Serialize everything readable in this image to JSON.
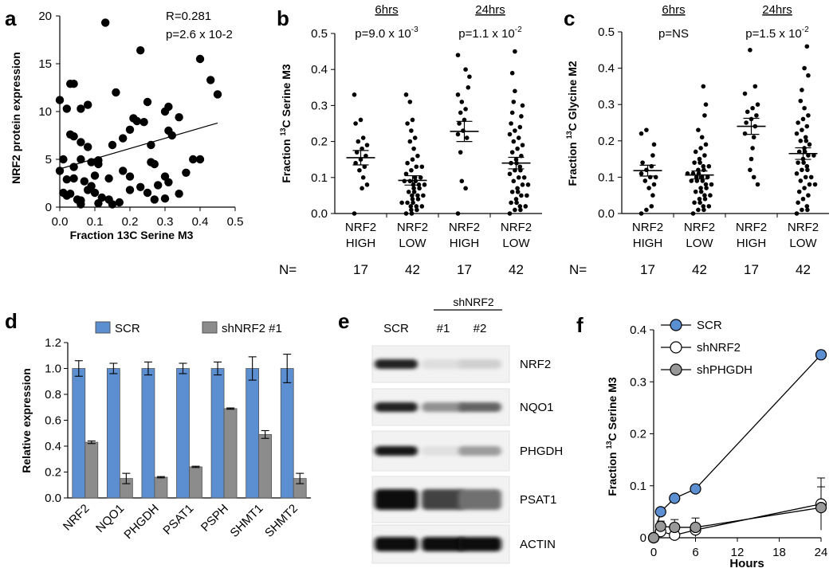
{
  "panel_labels": {
    "a": "a",
    "b": "b",
    "c": "c",
    "d": "d",
    "e": "e",
    "f": "f"
  },
  "chart_data": [
    {
      "id": "a",
      "type": "scatter",
      "title": "",
      "xlabel": "Fraction 13C Serine M3",
      "ylabel": "NRF2 protein expression",
      "xlim": [
        0,
        0.5
      ],
      "ylim": [
        0,
        20
      ],
      "xticks": [
        "0.0",
        "0.1",
        "0.2",
        "0.3",
        "0.4",
        "0.5"
      ],
      "yticks": [
        "0",
        "5",
        "10",
        "15",
        "20"
      ],
      "annotations": [
        "R=0.281",
        "p=2.6 x 10-2"
      ],
      "trendline": {
        "x": [
          0.0,
          0.45
        ],
        "y": [
          4.0,
          8.8
        ]
      },
      "points": [
        [
          0.13,
          19.3
        ],
        [
          0.23,
          16.4
        ],
        [
          0.4,
          15.5
        ],
        [
          0.43,
          13.3
        ],
        [
          0.45,
          11.8
        ],
        [
          0.0,
          11.2
        ],
        [
          0.03,
          12.9
        ],
        [
          0.04,
          12.9
        ],
        [
          0.02,
          10.3
        ],
        [
          0.06,
          10.3
        ],
        [
          0.08,
          10.7
        ],
        [
          0.16,
          12.0
        ],
        [
          0.31,
          10.5
        ],
        [
          0.3,
          10.0
        ],
        [
          0.25,
          11.0
        ],
        [
          0.32,
          7.5
        ],
        [
          0.31,
          8.0
        ],
        [
          0.2,
          8.1
        ],
        [
          0.18,
          7.2
        ],
        [
          0.15,
          6.5
        ],
        [
          0.21,
          9.3
        ],
        [
          0.22,
          9.0
        ],
        [
          0.24,
          8.9
        ],
        [
          0.26,
          6.5
        ],
        [
          0.34,
          9.4
        ],
        [
          0.38,
          5.0
        ],
        [
          0.4,
          5.0
        ],
        [
          0.36,
          3.6
        ],
        [
          0.03,
          7.6
        ],
        [
          0.04,
          7.4
        ],
        [
          0.06,
          6.8
        ],
        [
          0.08,
          6.3
        ],
        [
          0.11,
          4.9
        ],
        [
          0.09,
          4.7
        ],
        [
          0.11,
          4.5
        ],
        [
          0.06,
          5.0
        ],
        [
          0.01,
          5.0
        ],
        [
          0.0,
          3.8
        ],
        [
          0.02,
          2.9
        ],
        [
          0.04,
          4.2
        ],
        [
          0.04,
          3.0
        ],
        [
          0.07,
          2.7
        ],
        [
          0.1,
          3.3
        ],
        [
          0.09,
          2.2
        ],
        [
          0.18,
          3.8
        ],
        [
          0.2,
          3.2
        ],
        [
          0.14,
          3.0
        ],
        [
          0.3,
          3.2
        ],
        [
          0.31,
          2.6
        ],
        [
          0.28,
          2.3
        ],
        [
          0.27,
          4.5
        ],
        [
          0.26,
          4.7
        ],
        [
          0.25,
          1.5
        ],
        [
          0.01,
          1.5
        ],
        [
          0.02,
          1.2
        ],
        [
          0.03,
          1.4
        ],
        [
          0.05,
          0.8
        ],
        [
          0.06,
          0.7
        ],
        [
          0.08,
          1.8
        ],
        [
          0.1,
          1.5
        ],
        [
          0.12,
          1.0
        ],
        [
          0.14,
          0.8
        ],
        [
          0.2,
          1.8
        ],
        [
          0.23,
          2.1
        ],
        [
          0.27,
          0.8
        ],
        [
          0.3,
          0.9
        ],
        [
          0.34,
          1.4
        ],
        [
          0.15,
          0.3
        ],
        [
          0.17,
          0.5
        ],
        [
          0.06,
          0.3
        ],
        [
          0.11,
          0.4
        ]
      ]
    },
    {
      "id": "b",
      "type": "scatter",
      "ylabel": "Fraction 13C Serine M3",
      "ylabel_pre": "Fraction ",
      "ylabel_sup": "13",
      "ylabel_post": "C Serine M3",
      "ylim": [
        0,
        0.5
      ],
      "yticks": [
        "0.0",
        "0.1",
        "0.2",
        "0.3",
        "0.4",
        "0.5"
      ],
      "categories": [
        [
          "NRF2",
          "HIGH"
        ],
        [
          "NRF2",
          "LOW"
        ],
        [
          "NRF2",
          "HIGH"
        ],
        [
          "NRF2",
          "LOW"
        ]
      ],
      "n_prefix": "N= ",
      "n_values": [
        "17",
        "42",
        "17",
        "42"
      ],
      "groups": [
        {
          "label": "6hrs",
          "p": "p=9.0 x 10",
          "p_exp": "-3"
        },
        {
          "label": "24hrs",
          "p": "p=1.1 x 10",
          "p_exp": "-2"
        }
      ],
      "means": [
        0.155,
        0.092,
        0.228,
        0.14
      ],
      "sems": [
        0.02,
        0.013,
        0.028,
        0.016
      ],
      "values": [
        [
          0.33,
          0.26,
          0.25,
          0.21,
          0.2,
          0.19,
          0.18,
          0.17,
          0.16,
          0.15,
          0.14,
          0.13,
          0.12,
          0.1,
          0.08,
          0.07,
          0.0
        ],
        [
          0.33,
          0.31,
          0.26,
          0.25,
          0.23,
          0.21,
          0.2,
          0.18,
          0.16,
          0.15,
          0.14,
          0.13,
          0.13,
          0.12,
          0.11,
          0.1,
          0.1,
          0.09,
          0.09,
          0.09,
          0.08,
          0.08,
          0.08,
          0.07,
          0.07,
          0.06,
          0.06,
          0.05,
          0.05,
          0.05,
          0.04,
          0.04,
          0.03,
          0.03,
          0.03,
          0.02,
          0.02,
          0.02,
          0.01,
          0.01,
          0.0,
          0.0
        ],
        [
          0.44,
          0.4,
          0.38,
          0.35,
          0.33,
          0.31,
          0.29,
          0.28,
          0.26,
          0.25,
          0.23,
          0.22,
          0.21,
          0.17,
          0.09,
          0.07,
          0.0
        ],
        [
          0.45,
          0.39,
          0.34,
          0.31,
          0.3,
          0.28,
          0.27,
          0.25,
          0.24,
          0.23,
          0.22,
          0.21,
          0.2,
          0.19,
          0.18,
          0.17,
          0.16,
          0.15,
          0.14,
          0.14,
          0.13,
          0.12,
          0.12,
          0.11,
          0.1,
          0.1,
          0.09,
          0.08,
          0.08,
          0.07,
          0.06,
          0.06,
          0.05,
          0.05,
          0.04,
          0.03,
          0.03,
          0.02,
          0.02,
          0.01,
          0.01,
          0.0
        ]
      ]
    },
    {
      "id": "c",
      "type": "scatter",
      "ylabel": "Fraction 13C Glycine M2",
      "ylabel_pre": "Fraction ",
      "ylabel_sup": "13",
      "ylabel_post": "C Glycine M2",
      "ylim": [
        0,
        0.5
      ],
      "yticks": [
        "0.0",
        "0.1",
        "0.2",
        "0.3",
        "0.4",
        "0.5"
      ],
      "categories": [
        [
          "NRF2",
          "HIGH"
        ],
        [
          "NRF2",
          "LOW"
        ],
        [
          "NRF2",
          "HIGH"
        ],
        [
          "NRF2",
          "LOW"
        ]
      ],
      "n_prefix": "N= ",
      "n_values": [
        "17",
        "42",
        "17",
        "42"
      ],
      "groups": [
        {
          "label": "6hrs",
          "p": "p=NS",
          "p_exp": ""
        },
        {
          "label": "24hrs",
          "p": "p=1.5 x 10",
          "p_exp": "-2"
        }
      ],
      "means": [
        0.118,
        0.106,
        0.24,
        0.165
      ],
      "sems": [
        0.015,
        0.011,
        0.022,
        0.016
      ],
      "values": [
        [
          0.23,
          0.22,
          0.19,
          0.16,
          0.14,
          0.13,
          0.12,
          0.11,
          0.1,
          0.1,
          0.09,
          0.08,
          0.07,
          0.05,
          0.02,
          0.01,
          0.0
        ],
        [
          0.35,
          0.3,
          0.27,
          0.23,
          0.21,
          0.19,
          0.18,
          0.17,
          0.16,
          0.15,
          0.14,
          0.14,
          0.13,
          0.13,
          0.12,
          0.12,
          0.11,
          0.11,
          0.11,
          0.1,
          0.1,
          0.1,
          0.09,
          0.09,
          0.09,
          0.08,
          0.08,
          0.07,
          0.07,
          0.06,
          0.06,
          0.05,
          0.05,
          0.04,
          0.04,
          0.03,
          0.03,
          0.02,
          0.02,
          0.01,
          0.01,
          0.0
        ],
        [
          0.45,
          0.35,
          0.33,
          0.3,
          0.29,
          0.28,
          0.27,
          0.26,
          0.25,
          0.24,
          0.22,
          0.21,
          0.18,
          0.15,
          0.12,
          0.1,
          0.08
        ],
        [
          0.46,
          0.4,
          0.38,
          0.34,
          0.31,
          0.29,
          0.27,
          0.26,
          0.25,
          0.24,
          0.23,
          0.22,
          0.21,
          0.2,
          0.2,
          0.19,
          0.18,
          0.17,
          0.17,
          0.16,
          0.16,
          0.15,
          0.14,
          0.14,
          0.13,
          0.12,
          0.12,
          0.11,
          0.1,
          0.1,
          0.09,
          0.08,
          0.08,
          0.07,
          0.06,
          0.05,
          0.04,
          0.03,
          0.02,
          0.01,
          0.01,
          0.0
        ]
      ]
    },
    {
      "id": "d",
      "type": "bar",
      "ylabel": "Relative expression",
      "ylim": [
        0,
        1.2
      ],
      "yticks": [
        "0.0",
        "0.2",
        "0.4",
        "0.6",
        "0.8",
        "1.0",
        "1.2"
      ],
      "categories": [
        "NRF2",
        "NQO1",
        "PHGDH",
        "PSAT1",
        "PSPH",
        "SHMT1",
        "SHMT2"
      ],
      "legend": "top",
      "series": [
        {
          "name": "SCR",
          "color": "#5b8fd1",
          "values": [
            1.0,
            1.0,
            1.0,
            1.0,
            1.0,
            1.0,
            1.0
          ],
          "err": [
            0.06,
            0.04,
            0.05,
            0.04,
            0.05,
            0.09,
            0.11
          ]
        },
        {
          "name": "shNRF2 #1",
          "color": "#8c8c8c",
          "values": [
            0.43,
            0.15,
            0.16,
            0.24,
            0.69,
            0.49,
            0.15
          ],
          "err": [
            0.01,
            0.04,
            0.005,
            0.005,
            0.005,
            0.03,
            0.04
          ]
        }
      ]
    },
    {
      "id": "f",
      "type": "line",
      "xlabel": "Hours",
      "ylabel": "Fraction 13C Serine M3",
      "ylabel_pre": "Fraction ",
      "ylabel_sup": "13",
      "ylabel_post": "C Serine M3",
      "xlim": [
        0,
        24
      ],
      "ylim": [
        0,
        0.4
      ],
      "xticks": [
        "0",
        "6",
        "12",
        "18",
        "24"
      ],
      "yticks": [
        "0",
        "0.1",
        "0.2",
        "0.3",
        "0.4"
      ],
      "x": [
        0,
        1,
        3,
        6,
        24
      ],
      "legend": "top-left",
      "series": [
        {
          "name": "SCR",
          "color": "#5b8fd1",
          "values": [
            0.0,
            0.05,
            0.076,
            0.094,
            0.352
          ],
          "err": [
            0,
            0.005,
            0.005,
            0.005,
            0.008
          ]
        },
        {
          "name": "shNRF2",
          "color": "#ffffff",
          "values": [
            0.0,
            0.012,
            0.005,
            0.015,
            0.065
          ],
          "err": [
            0,
            0.01,
            0.01,
            0.01,
            0.05
          ]
        },
        {
          "name": "shPHGDH",
          "color": "#999999",
          "values": [
            0.0,
            0.022,
            0.02,
            0.02,
            0.058
          ],
          "err": [
            0,
            0.01,
            0.015,
            0.018,
            0.04
          ]
        }
      ]
    }
  ],
  "blot": {
    "group_label": "shNRF2",
    "lanes": [
      "SCR",
      "#1",
      "#2"
    ],
    "rows": [
      {
        "label": "NRF2",
        "intensity": [
          0.9,
          0.06,
          0.12
        ]
      },
      {
        "label": "NQO1",
        "intensity": [
          0.9,
          0.4,
          0.6
        ]
      },
      {
        "label": "PHGDH",
        "intensity": [
          0.95,
          0.05,
          0.35
        ]
      },
      {
        "label": "PSAT1",
        "intensity": [
          1.0,
          0.75,
          0.55
        ]
      },
      {
        "label": "ACTIN",
        "intensity": [
          1.0,
          1.0,
          1.0
        ]
      }
    ]
  }
}
